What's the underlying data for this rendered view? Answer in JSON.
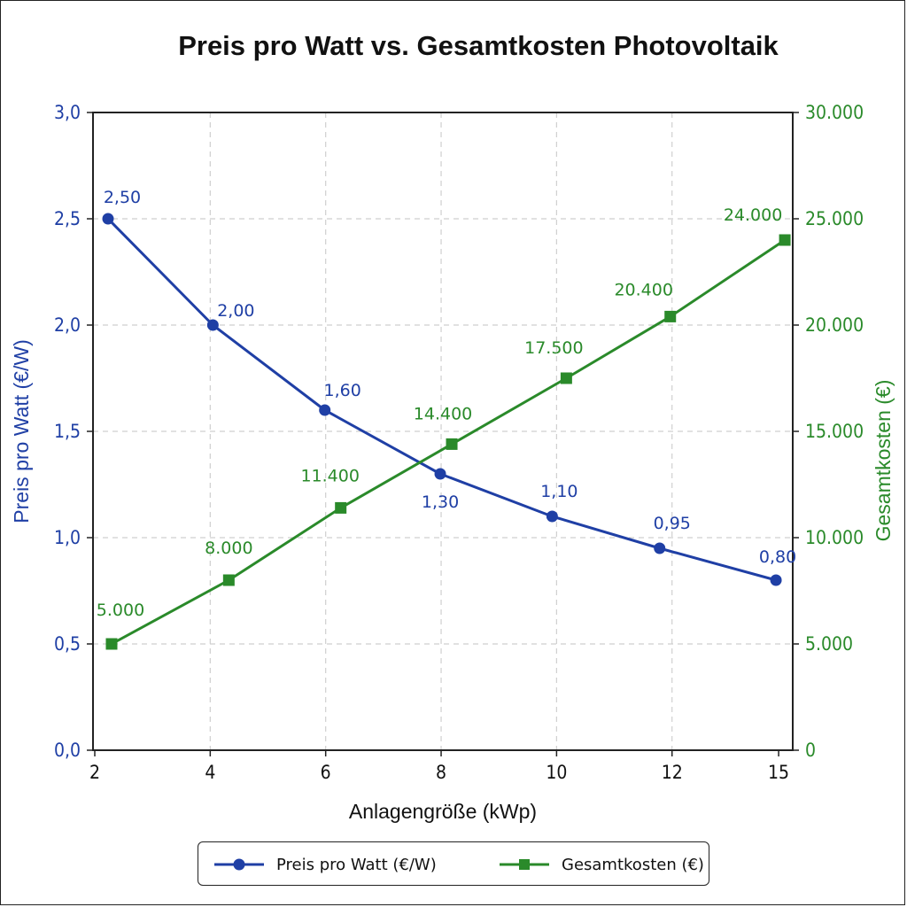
{
  "chart_data": {
    "type": "line",
    "title": "Preis pro Watt vs. Gesamtkosten Photovoltaik",
    "xlabel": "Anlagengröße (kWp)",
    "ylabel_left": "Preis pro Watt (€/W)",
    "ylabel_right": "Gesamtkosten (€)",
    "x_ticks": [
      "2",
      "4",
      "6",
      "8",
      "10",
      "12",
      "15"
    ],
    "y_left_ticks": [
      "0,0",
      "0,5",
      "1,0",
      "1,5",
      "2,0",
      "2,5",
      "3,0"
    ],
    "y_right_ticks": [
      "0",
      "5.000",
      "10.000",
      "15.000",
      "20.000",
      "25.000",
      "30.000"
    ],
    "ylim_left": [
      0,
      3
    ],
    "ylim_right": [
      0,
      30000
    ],
    "grid": true,
    "legend_position": "bottom",
    "series": [
      {
        "name": "Preis pro Watt (€/W)",
        "axis": "left",
        "color": "#1f3fa5",
        "marker": "circle",
        "x": [
          2,
          4,
          6,
          8,
          10,
          12,
          15
        ],
        "values": [
          2.5,
          2.0,
          1.6,
          1.3,
          1.1,
          0.95,
          0.8
        ],
        "labels": [
          "2,50",
          "2,00",
          "1,60",
          "1,30",
          "1,10",
          "0,95",
          "0,80"
        ]
      },
      {
        "name": "Gesamtkosten (€)",
        "axis": "right",
        "color": "#2a8a2a",
        "marker": "square",
        "x": [
          2,
          4,
          6,
          8,
          10,
          12,
          15
        ],
        "values": [
          5000,
          8000,
          11400,
          14400,
          17500,
          20400,
          24000
        ],
        "labels": [
          "5.000",
          "8.000",
          "11.400",
          "14.400",
          "17.500",
          "20.400",
          "24.000"
        ]
      }
    ]
  }
}
